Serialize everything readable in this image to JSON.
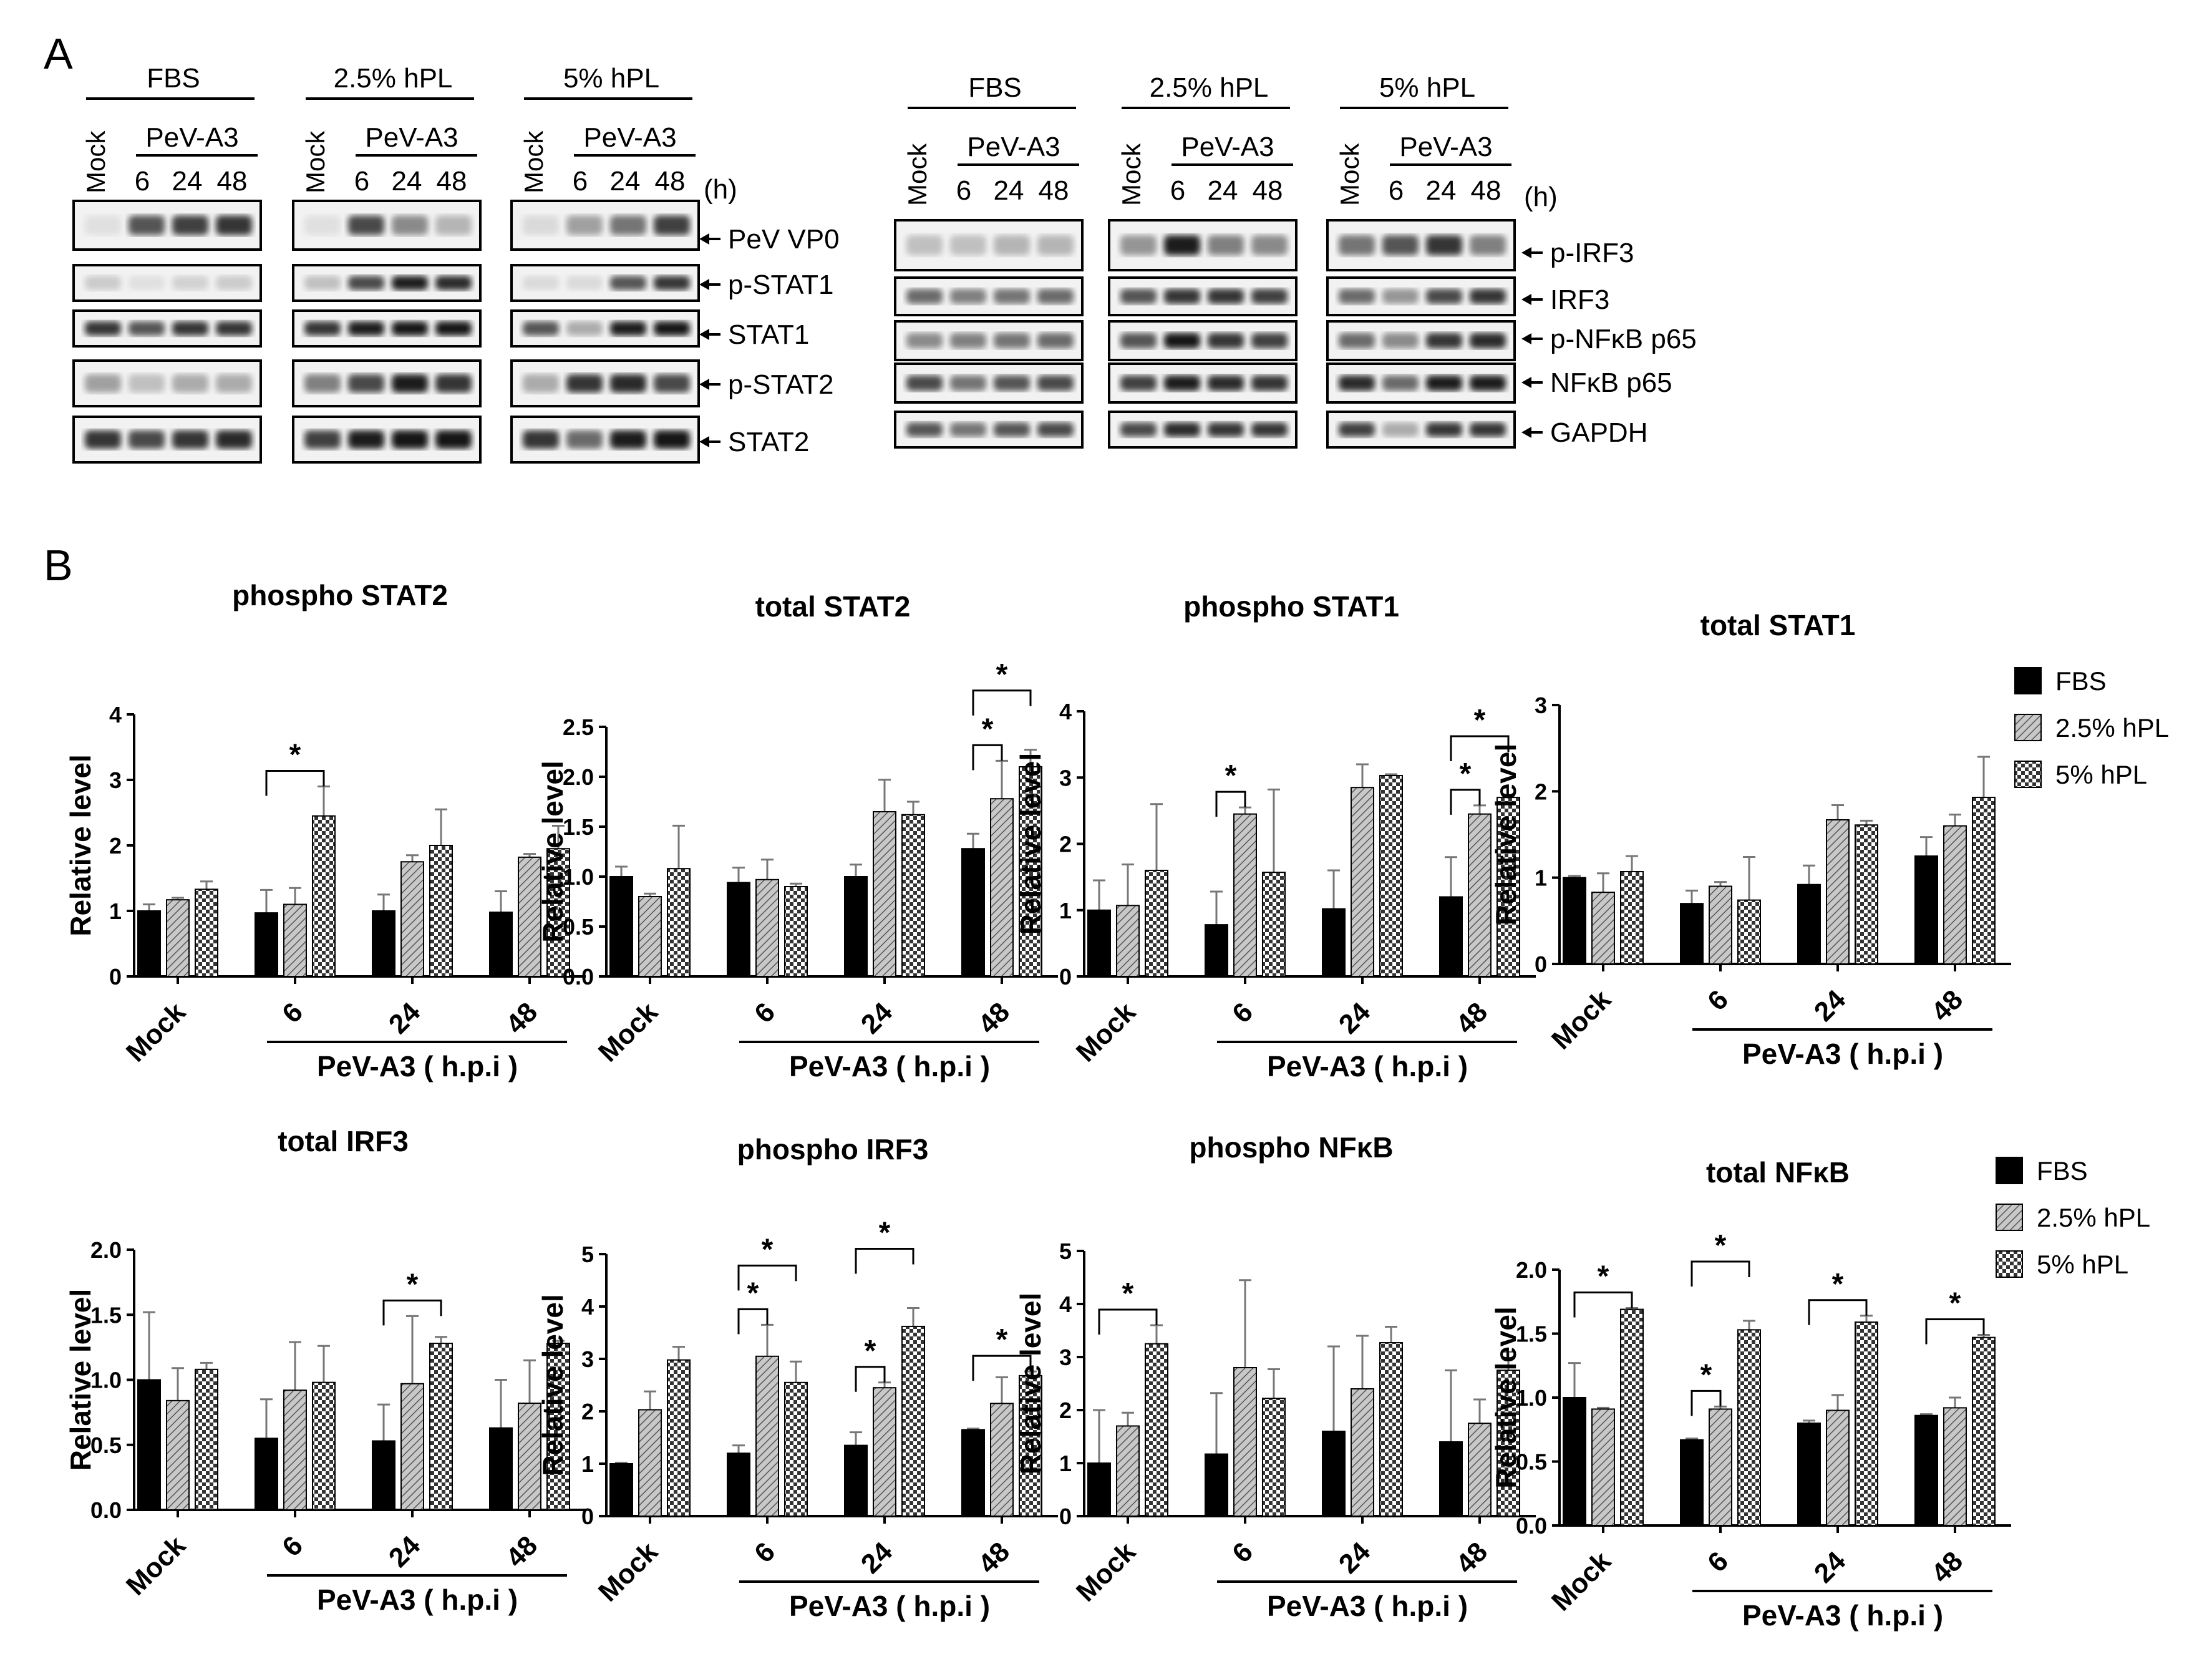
{
  "panel_labels": {
    "a": "A",
    "b": "B"
  },
  "blot": {
    "conditions": [
      "FBS",
      "2.5% hPL",
      "5% hPL"
    ],
    "mock_label": "Mock",
    "virus_label": "PeV-A3",
    "timepoints": [
      "6",
      "24",
      "48"
    ],
    "time_unit": "(h)",
    "left_proteins": [
      "PeV VP0",
      "p-STAT1",
      "STAT1",
      "p-STAT2",
      "STAT2"
    ],
    "right_proteins": [
      "p-IRF3",
      "IRF3",
      "p-NFκB p65",
      "NFκB p65",
      "GAPDH"
    ]
  },
  "legend": {
    "items": [
      "FBS",
      "2.5% hPL",
      "5% hPL"
    ],
    "colors": [
      "#000000",
      "#a8a8a8",
      "checker"
    ]
  },
  "common": {
    "ylabel": "Relative level",
    "xgroup_label": "PeV-A3 ( h.p.i )",
    "categories": [
      "Mock",
      "6",
      "24",
      "48"
    ],
    "series_names": [
      "FBS",
      "2.5% hPL",
      "5% hPL"
    ]
  },
  "chart_data": [
    {
      "type": "bar",
      "title": "phospho STAT2",
      "ylabel": "Relative level",
      "categories": [
        "Mock",
        "6",
        "24",
        "48"
      ],
      "ylim": [
        0,
        4
      ],
      "yticks": [
        "0",
        "1",
        "2",
        "3",
        "4"
      ],
      "series": [
        {
          "name": "FBS",
          "values": [
            1.0,
            0.97,
            1.0,
            0.98
          ],
          "errors": [
            0.1,
            0.35,
            0.25,
            0.32
          ]
        },
        {
          "name": "2.5% hPL",
          "values": [
            1.17,
            1.1,
            1.75,
            1.82
          ],
          "errors": [
            0.03,
            0.25,
            0.1,
            0.05
          ]
        },
        {
          "name": "5% hPL",
          "values": [
            1.33,
            2.45,
            2.0,
            1.95
          ],
          "errors": [
            0.12,
            0.45,
            0.55,
            0.35
          ]
        }
      ],
      "annotations": [
        {
          "category": "6",
          "from": "FBS",
          "to": "5% hPL",
          "text": "*"
        }
      ]
    },
    {
      "type": "bar",
      "title": "total STAT2",
      "ylabel": "Relative level",
      "categories": [
        "Mock",
        "6",
        "24",
        "48"
      ],
      "ylim": [
        0,
        2.5
      ],
      "yticks": [
        "0.0",
        "0.5",
        "1.0",
        "1.5",
        "2.0",
        "2.5"
      ],
      "series": [
        {
          "name": "FBS",
          "values": [
            1.0,
            0.94,
            1.0,
            1.28
          ],
          "errors": [
            0.1,
            0.15,
            0.12,
            0.15
          ]
        },
        {
          "name": "2.5% hPL",
          "values": [
            0.8,
            0.97,
            1.65,
            1.78
          ],
          "errors": [
            0.03,
            0.2,
            0.32,
            0.38
          ]
        },
        {
          "name": "5% hPL",
          "values": [
            1.08,
            0.9,
            1.62,
            2.1
          ],
          "errors": [
            0.43,
            0.03,
            0.13,
            0.17
          ]
        }
      ],
      "annotations": [
        {
          "category": "48",
          "from": "FBS",
          "to": "2.5% hPL",
          "text": "*"
        },
        {
          "category": "48",
          "from": "FBS",
          "to": "5% hPL",
          "text": "*"
        }
      ]
    },
    {
      "type": "bar",
      "title": "phospho STAT1",
      "ylabel": "Relative level",
      "categories": [
        "Mock",
        "6",
        "24",
        "48"
      ],
      "ylim": [
        0,
        4
      ],
      "yticks": [
        "0",
        "1",
        "2",
        "3",
        "4"
      ],
      "series": [
        {
          "name": "FBS",
          "values": [
            1.0,
            0.78,
            1.02,
            1.2
          ],
          "errors": [
            0.45,
            0.5,
            0.58,
            0.6
          ]
        },
        {
          "name": "2.5% hPL",
          "values": [
            1.07,
            2.45,
            2.85,
            2.45
          ],
          "errors": [
            0.62,
            0.1,
            0.35,
            0.13
          ]
        },
        {
          "name": "5% hPL",
          "values": [
            1.6,
            1.57,
            3.03,
            2.7
          ],
          "errors": [
            1.0,
            1.25,
            0.02,
            0.03
          ]
        }
      ],
      "annotations": [
        {
          "category": "6",
          "from": "FBS",
          "to": "2.5% hPL",
          "text": "*"
        },
        {
          "category": "48",
          "from": "FBS",
          "to": "2.5% hPL",
          "text": "*"
        },
        {
          "category": "48",
          "from": "FBS",
          "to": "5% hPL",
          "text": "*"
        }
      ]
    },
    {
      "type": "bar",
      "title": "total STAT1",
      "ylabel": "Relative level",
      "categories": [
        "Mock",
        "6",
        "24",
        "48"
      ],
      "ylim": [
        0,
        3
      ],
      "yticks": [
        "0",
        "1",
        "2",
        "3"
      ],
      "series": [
        {
          "name": "FBS",
          "values": [
            1.0,
            0.7,
            0.92,
            1.25
          ],
          "errors": [
            0.02,
            0.15,
            0.22,
            0.22
          ]
        },
        {
          "name": "2.5% hPL",
          "values": [
            0.83,
            0.9,
            1.67,
            1.6
          ],
          "errors": [
            0.22,
            0.05,
            0.17,
            0.13
          ]
        },
        {
          "name": "5% hPL",
          "values": [
            1.07,
            0.74,
            1.61,
            1.93
          ],
          "errors": [
            0.18,
            0.5,
            0.05,
            0.47
          ]
        }
      ],
      "annotations": []
    },
    {
      "type": "bar",
      "title": "total IRF3",
      "ylabel": "Relative level",
      "categories": [
        "Mock",
        "6",
        "24",
        "48"
      ],
      "ylim": [
        0,
        2.0
      ],
      "yticks": [
        "0.0",
        "0.5",
        "1.0",
        "1.5",
        "2.0"
      ],
      "series": [
        {
          "name": "FBS",
          "values": [
            1.0,
            0.55,
            0.53,
            0.63
          ],
          "errors": [
            0.52,
            0.3,
            0.28,
            0.37
          ]
        },
        {
          "name": "2.5% hPL",
          "values": [
            0.84,
            0.92,
            0.97,
            0.82
          ],
          "errors": [
            0.25,
            0.37,
            0.52,
            0.33
          ]
        },
        {
          "name": "5% hPL",
          "values": [
            1.08,
            0.98,
            1.28,
            1.28
          ],
          "errors": [
            0.05,
            0.28,
            0.05,
            0.02
          ]
        }
      ],
      "annotations": [
        {
          "category": "24",
          "from": "FBS",
          "to": "5% hPL",
          "text": "*"
        }
      ]
    },
    {
      "type": "bar",
      "title": "phospho IRF3",
      "ylabel": "Relative level",
      "categories": [
        "Mock",
        "6",
        "24",
        "48"
      ],
      "ylim": [
        0,
        5
      ],
      "yticks": [
        "0",
        "1",
        "2",
        "3",
        "4",
        "5"
      ],
      "series": [
        {
          "name": "FBS",
          "values": [
            1.0,
            1.2,
            1.35,
            1.65
          ],
          "errors": [
            0.02,
            0.15,
            0.25,
            0.02
          ]
        },
        {
          "name": "2.5% hPL",
          "values": [
            2.03,
            3.05,
            2.45,
            2.15
          ],
          "errors": [
            0.35,
            0.6,
            0.1,
            0.5
          ]
        },
        {
          "name": "5% hPL",
          "values": [
            2.98,
            2.55,
            3.62,
            2.68
          ],
          "errors": [
            0.25,
            0.4,
            0.35,
            0.08
          ]
        }
      ],
      "annotations": [
        {
          "category": "6",
          "from": "FBS",
          "to": "2.5% hPL",
          "text": "*"
        },
        {
          "category": "6",
          "from": "FBS",
          "to": "5% hPL",
          "text": "*"
        },
        {
          "category": "24",
          "from": "FBS",
          "to": "2.5% hPL",
          "text": "*"
        },
        {
          "category": "24",
          "from": "FBS",
          "to": "5% hPL",
          "text": "*"
        },
        {
          "category": "48",
          "from": "FBS",
          "to": "5% hPL",
          "text": "*"
        }
      ]
    },
    {
      "type": "bar",
      "title": "phospho NFκB",
      "ylabel": "Relative level",
      "categories": [
        "Mock",
        "6",
        "24",
        "48"
      ],
      "ylim": [
        0,
        5
      ],
      "yticks": [
        "0",
        "1",
        "2",
        "3",
        "4",
        "5"
      ],
      "series": [
        {
          "name": "FBS",
          "values": [
            1.0,
            1.17,
            1.6,
            1.4
          ],
          "errors": [
            1.0,
            1.15,
            1.6,
            1.35
          ]
        },
        {
          "name": "2.5% hPL",
          "values": [
            1.7,
            2.8,
            2.4,
            1.75
          ],
          "errors": [
            0.25,
            1.65,
            1.0,
            0.45
          ]
        },
        {
          "name": "5% hPL",
          "values": [
            3.25,
            2.22,
            3.27,
            2.75
          ],
          "errors": [
            0.35,
            0.55,
            0.3,
            0.35
          ]
        }
      ],
      "annotations": [
        {
          "category": "Mock",
          "from": "FBS",
          "to": "5% hPL",
          "text": "*"
        }
      ]
    },
    {
      "type": "bar",
      "title": "total NFκB",
      "ylabel": "Relative level",
      "categories": [
        "Mock",
        "6",
        "24",
        "48"
      ],
      "ylim": [
        0,
        2.0
      ],
      "yticks": [
        "0.0",
        "0.5",
        "1.0",
        "1.5",
        "2.0"
      ],
      "series": [
        {
          "name": "FBS",
          "values": [
            1.0,
            0.67,
            0.8,
            0.86
          ],
          "errors": [
            0.27,
            0.01,
            0.02,
            0.01
          ]
        },
        {
          "name": "2.5% hPL",
          "values": [
            0.91,
            0.91,
            0.9,
            0.92
          ],
          "errors": [
            0.01,
            0.02,
            0.12,
            0.08
          ]
        },
        {
          "name": "5% hPL",
          "values": [
            1.69,
            1.53,
            1.59,
            1.47
          ],
          "errors": [
            0.01,
            0.07,
            0.05,
            0.02
          ]
        }
      ],
      "annotations": [
        {
          "category": "Mock",
          "from": "FBS",
          "to": "5% hPL",
          "text": "*"
        },
        {
          "category": "6",
          "from": "FBS",
          "to": "2.5% hPL",
          "text": "*"
        },
        {
          "category": "6",
          "from": "FBS",
          "to": "5% hPL",
          "text": "*"
        },
        {
          "category": "24",
          "from": "FBS",
          "to": "5% hPL",
          "text": "*"
        },
        {
          "category": "48",
          "from": "FBS",
          "to": "5% hPL",
          "text": "*"
        }
      ]
    }
  ]
}
